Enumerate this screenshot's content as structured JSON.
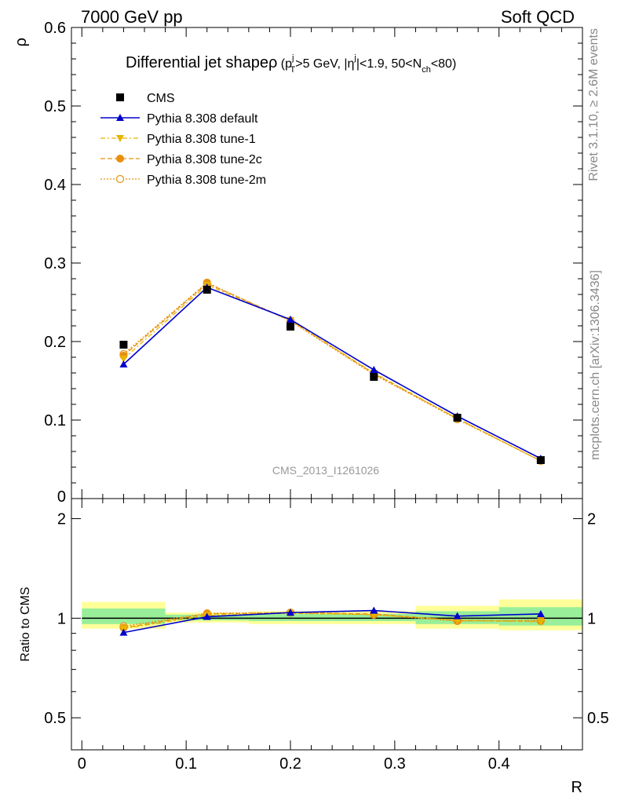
{
  "header": {
    "energy_label": "7000 GeV pp",
    "category_label": "Soft QCD"
  },
  "side_labels": {
    "rivet": "Rivet 3.1.10, ≥ 2.6M events",
    "mcplots": "mcplots.cern.ch [arXiv:1306.3436]"
  },
  "chart_data": [
    {
      "type": "line",
      "title": "Differential jet shapeρ (p_T^j>5 GeV, |η^j|<1.9, 50<N_ch<80)",
      "title_parts": {
        "main": "Differential jet shape",
        "rho": "ρ",
        "open": " (p",
        "sub_T": "T",
        "sup_j1": "j",
        "pt_cut": ">5 GeV, |",
        "eta": "η",
        "sup_j2": "j",
        "eta_cut": "|<1.9, 50<N",
        "sub_ch": "ch",
        "close": "<80)"
      },
      "ylabel": "ρ",
      "xlabel": "",
      "watermark": "CMS_2013_I1261026",
      "xlim": [
        -0.01,
        0.48
      ],
      "ylim": [
        0,
        0.6
      ],
      "yticks": [
        {
          "v": 0.1,
          "label": "0.1"
        },
        {
          "v": 0.2,
          "label": "0.2"
        },
        {
          "v": 0.3,
          "label": "0.3"
        },
        {
          "v": 0.4,
          "label": "0.4"
        },
        {
          "v": 0.5,
          "label": "0.5"
        },
        {
          "v": 0.6,
          "label": "0.6"
        },
        {
          "v": 0.0,
          "label": "0"
        }
      ],
      "legend_position": "top-left",
      "x": [
        0.04,
        0.12,
        0.2,
        0.28,
        0.36,
        0.44
      ],
      "series": [
        {
          "name": "CMS",
          "values": [
            0.196,
            0.266,
            0.219,
            0.155,
            0.103,
            0.049
          ],
          "color": "#000000",
          "marker": "square",
          "line": "none"
        },
        {
          "name": "Pythia 8.308 default",
          "values": [
            0.171,
            0.269,
            0.228,
            0.164,
            0.105,
            0.051
          ],
          "color": "#0000cc",
          "marker": "triangle-up",
          "line": "solid"
        },
        {
          "name": "Pythia 8.308 tune-1",
          "values": [
            0.178,
            0.272,
            0.227,
            0.16,
            0.102,
            0.048
          ],
          "color": "#e8b400",
          "marker": "triangle-down",
          "line": "dashdot"
        },
        {
          "name": "Pythia 8.308 tune-2c",
          "values": [
            0.182,
            0.274,
            0.227,
            0.159,
            0.102,
            0.048
          ],
          "color": "#e8900c",
          "marker": "circle",
          "line": "dashed"
        },
        {
          "name": "Pythia 8.308 tune-2m",
          "values": [
            0.184,
            0.275,
            0.226,
            0.158,
            0.101,
            0.048
          ],
          "color": "#e8900c",
          "marker": "circle-open",
          "line": "dotted"
        }
      ]
    },
    {
      "type": "line",
      "ylabel": "Ratio to CMS",
      "xlabel": "R",
      "xlim": [
        -0.01,
        0.48
      ],
      "ylim": [
        0.4,
        2.3
      ],
      "ylog": true,
      "yticks": [
        {
          "v": 0.5,
          "label": "0.5"
        },
        {
          "v": 1,
          "label": "1"
        },
        {
          "v": 2,
          "label": "2"
        }
      ],
      "xticks": [
        {
          "v": 0,
          "label": "0"
        },
        {
          "v": 0.1,
          "label": "0.1"
        },
        {
          "v": 0.2,
          "label": "0.2"
        },
        {
          "v": 0.3,
          "label": "0.3"
        },
        {
          "v": 0.4,
          "label": "0.4"
        }
      ],
      "bins": [
        [
          0.0,
          0.08
        ],
        [
          0.08,
          0.16
        ],
        [
          0.16,
          0.24
        ],
        [
          0.24,
          0.32
        ],
        [
          0.32,
          0.4
        ],
        [
          0.4,
          0.48
        ]
      ],
      "yellow_band": [
        [
          0.93,
          1.12
        ],
        [
          0.97,
          1.04
        ],
        [
          0.96,
          1.05
        ],
        [
          0.96,
          1.05
        ],
        [
          0.93,
          1.09
        ],
        [
          0.92,
          1.14
        ]
      ],
      "green_band": [
        [
          0.96,
          1.07
        ],
        [
          0.985,
          1.025
        ],
        [
          0.98,
          1.03
        ],
        [
          0.98,
          1.03
        ],
        [
          0.96,
          1.05
        ],
        [
          0.95,
          1.08
        ]
      ],
      "x": [
        0.04,
        0.12,
        0.2,
        0.28,
        0.36,
        0.44
      ],
      "series": [
        {
          "name": "Pythia 8.308 default",
          "values": [
            0.905,
            1.01,
            1.04,
            1.055,
            1.015,
            1.03
          ],
          "color": "#0000cc",
          "marker": "triangle-up",
          "line": "solid"
        },
        {
          "name": "Pythia 8.308 tune-1",
          "values": [
            0.93,
            1.02,
            1.035,
            1.025,
            0.985,
            0.975
          ],
          "color": "#e8b400",
          "marker": "triangle-down",
          "line": "dashdot"
        },
        {
          "name": "Pythia 8.308 tune-2c",
          "values": [
            0.935,
            1.03,
            1.04,
            1.03,
            0.985,
            0.98
          ],
          "color": "#e8900c",
          "marker": "circle",
          "line": "dashed"
        },
        {
          "name": "Pythia 8.308 tune-2m",
          "values": [
            0.945,
            1.035,
            1.04,
            1.025,
            0.98,
            0.985
          ],
          "color": "#e8900c",
          "marker": "circle-open",
          "line": "dotted"
        }
      ]
    }
  ]
}
